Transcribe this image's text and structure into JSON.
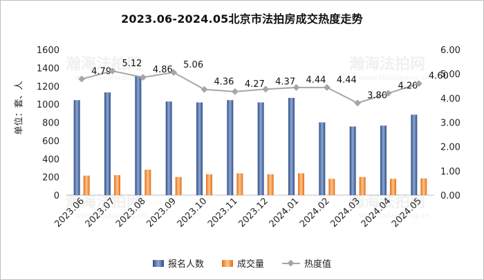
{
  "chart_data": {
    "type": "bar",
    "title": "2023.06-2024.05北京市法拍房成交热度走势",
    "ylabel": "单位：套、人",
    "categories": [
      "2023.06",
      "2023.07",
      "2023.08",
      "2023.09",
      "2023.10",
      "2023.11",
      "2023.12",
      "2024.01",
      "2024.02",
      "2024.03",
      "2024.04",
      "2024.05"
    ],
    "series": [
      {
        "name": "报名人数",
        "type": "bar",
        "axis": "left",
        "color": "#4a6aa6",
        "values": [
          1045,
          1130,
          1310,
          1030,
          1020,
          1045,
          1020,
          1070,
          800,
          755,
          765,
          885
        ]
      },
      {
        "name": "成交量",
        "type": "bar",
        "axis": "left",
        "color": "#f08a2c",
        "values": [
          215,
          220,
          280,
          200,
          230,
          240,
          230,
          240,
          180,
          200,
          180,
          185
        ]
      },
      {
        "name": "热度值",
        "type": "line",
        "axis": "right",
        "color": "#a6a6a6",
        "values": [
          4.79,
          5.12,
          4.86,
          5.06,
          4.36,
          4.27,
          4.37,
          4.44,
          4.44,
          3.8,
          4.2,
          4.6
        ]
      }
    ],
    "ylim_left": [
      0,
      1600
    ],
    "yticks_left": [
      "0",
      "200",
      "400",
      "600",
      "800",
      "1000",
      "1200",
      "1400",
      "1600"
    ],
    "ylim_right": [
      0,
      6
    ],
    "yticks_right": [
      "0.00",
      "1.00",
      "2.00",
      "3.00",
      "4.00",
      "5.00",
      "6.00"
    ],
    "grid": false,
    "legend_position": "bottom"
  },
  "watermarks": [
    "瀚海法拍网",
    "www.fapaiwang.cn"
  ]
}
